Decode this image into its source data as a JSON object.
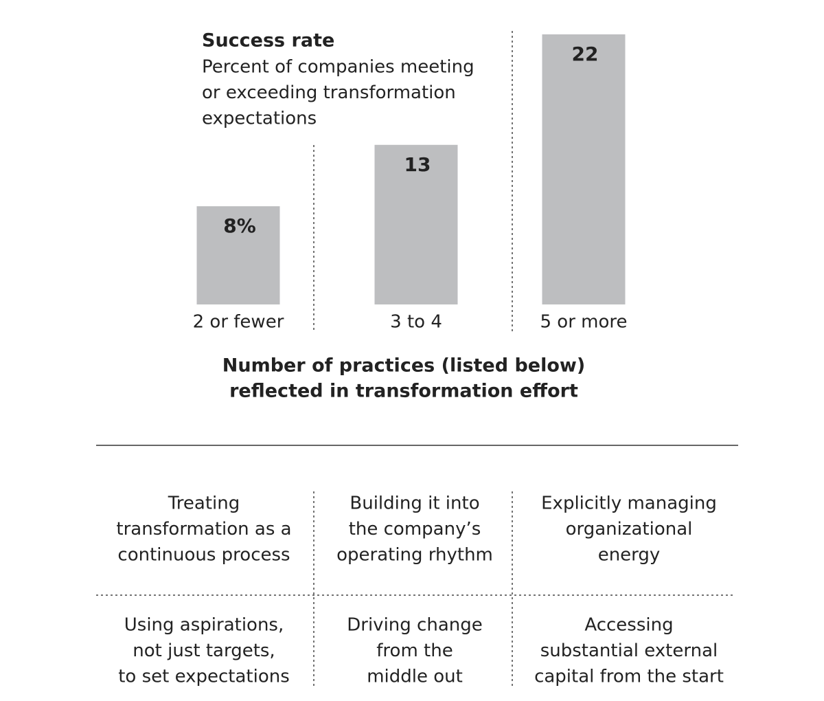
{
  "chart_data": {
    "type": "bar",
    "title": "Success rate",
    "subtitle": [
      "Percent of companies meeting",
      "or exceeding transformation",
      "expectations"
    ],
    "categories": [
      "2 or fewer",
      "3 to 4",
      "5 or more"
    ],
    "values": [
      8,
      13,
      22
    ],
    "value_labels": [
      "8%",
      "13",
      "22"
    ],
    "color": "#bdbec0",
    "xlabel": [
      "Number of practices (listed below)",
      "reflected in transformation effort"
    ]
  },
  "practices": [
    [
      [
        "Treating",
        "transformation as a",
        "continuous process"
      ],
      [
        "Building it into",
        "the company’s",
        "operating rhythm"
      ],
      [
        "Explicitly managing",
        "organizational",
        "energy"
      ]
    ],
    [
      [
        "Using aspirations,",
        "not just targets,",
        "to set expectations"
      ],
      [
        "Driving change",
        "from the",
        "middle out"
      ],
      [
        "Accessing",
        "substantial external",
        "capital from the start"
      ]
    ]
  ]
}
